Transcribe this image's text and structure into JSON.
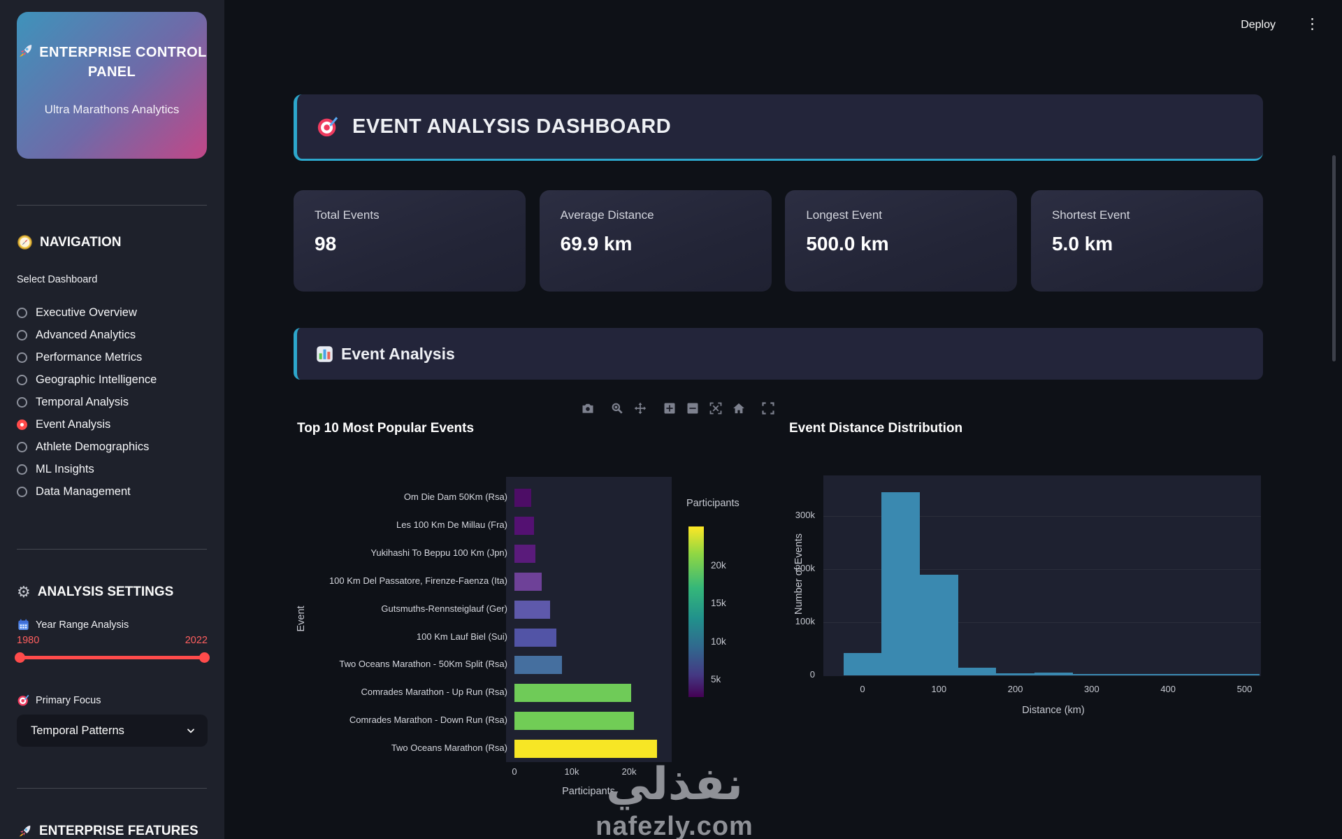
{
  "header": {
    "deploy_label": "Deploy"
  },
  "sidebar": {
    "brand": {
      "icon": "rocket-icon",
      "title_line1": "🚀 ENTERPRISE",
      "title_line2": "CONTROL PANEL",
      "title": "ENTERPRISE CONTROL PANEL",
      "subtitle": "Ultra Marathons Analytics"
    },
    "navigation": {
      "icon": "compass-icon",
      "title": "NAVIGATION",
      "select_label": "Select Dashboard",
      "selected_color": "#ff4b4b",
      "items": [
        {
          "label": "Executive Overview",
          "selected": false
        },
        {
          "label": "Advanced Analytics",
          "selected": false
        },
        {
          "label": "Performance Metrics",
          "selected": false
        },
        {
          "label": "Geographic Intelligence",
          "selected": false
        },
        {
          "label": "Temporal Analysis",
          "selected": false
        },
        {
          "label": "Event Analysis",
          "selected": true
        },
        {
          "label": "Athlete Demographics",
          "selected": false
        },
        {
          "label": "ML Insights",
          "selected": false
        },
        {
          "label": "Data Management",
          "selected": false
        }
      ]
    },
    "settings": {
      "icon": "gear-icon",
      "title": "ANALYSIS SETTINGS",
      "year_range": {
        "icon": "calendar-icon",
        "label": "Year Range Analysis",
        "min": "1980",
        "max": "2022",
        "accent": "#ff4b4b"
      },
      "focus": {
        "icon": "target-icon",
        "label": "Primary Focus",
        "value": "Temporal Patterns"
      }
    },
    "features": {
      "icon": "rocket-icon",
      "title": "ENTERPRISE FEATURES"
    }
  },
  "main": {
    "title": {
      "icon": "target-icon",
      "text": "EVENT ANALYSIS DASHBOARD"
    },
    "metrics": [
      {
        "label": "Total Events",
        "value": "98"
      },
      {
        "label": "Average Distance",
        "value": "69.9 km"
      },
      {
        "label": "Longest Event",
        "value": "500.0 km"
      },
      {
        "label": "Shortest Event",
        "value": "5.0 km"
      }
    ],
    "section": {
      "icon": "bar-chart-icon",
      "title": "Event Analysis"
    },
    "toolbar_icons": [
      "camera-icon",
      "zoom-icon",
      "pan-icon",
      "zoom-in-icon",
      "zoom-out-icon",
      "autoscale-icon",
      "home-icon",
      "fullscreen-icon"
    ],
    "watermark": {
      "arabic": "نفذلي",
      "latin": "nafezly.com"
    },
    "accent_teal": "#2da7cc"
  },
  "chart_data": [
    {
      "type": "bar",
      "orientation": "horizontal",
      "title": "Top 10 Most Popular Events",
      "xlabel": "Participants",
      "ylabel": "Event",
      "categories": [
        "Om Die Dam 50Km (Rsa)",
        "Les 100 Km De Millau (Fra)",
        "Yukihashi To Beppu 100 Km (Jpn)",
        "100 Km Del Passatore, Firenze-Faenza (Ita)",
        "Gutsmuths-Rennsteiglauf (Ger)",
        "100 Km Lauf Biel (Sui)",
        "Two Oceans Marathon - 50Km Split (Rsa)",
        "Comrades Marathon - Up Run (Rsa)",
        "Comrades Marathon - Down Run (Rsa)",
        "Two Oceans Marathon (Rsa)"
      ],
      "values": [
        2900,
        3400,
        3600,
        4800,
        6200,
        7300,
        8300,
        20400,
        20900,
        24900
      ],
      "bar_colors": [
        "#4d0d66",
        "#541172",
        "#5a1b7b",
        "#6e4198",
        "#5e59ab",
        "#5254a6",
        "#456f9f",
        "#6fcb58",
        "#71cd56",
        "#f7e625"
      ],
      "xticks": [
        "0",
        "10k",
        "20k"
      ],
      "xtick_values": [
        0,
        10000,
        20000
      ],
      "xlim": [
        0,
        28500
      ],
      "grid": false,
      "colorbar": {
        "title": "Participants",
        "tick_labels": [
          "20k",
          "15k",
          "10k",
          "5k"
        ],
        "tick_values": [
          20000,
          15000,
          10000,
          5000
        ],
        "vmin": 2800,
        "vmax": 25200,
        "colormap": "viridis"
      }
    },
    {
      "type": "histogram",
      "title": "Event Distance Distribution",
      "xlabel": "Distance (km)",
      "ylabel": "Number of Events",
      "bar_color": "#3a89b0",
      "bins": [
        {
          "x0": -25,
          "x1": 25,
          "count": 42000
        },
        {
          "x0": 25,
          "x1": 75,
          "count": 345000
        },
        {
          "x0": 75,
          "x1": 125,
          "count": 190000
        },
        {
          "x0": 125,
          "x1": 175,
          "count": 15000
        },
        {
          "x0": 175,
          "x1": 225,
          "count": 3500
        },
        {
          "x0": 225,
          "x1": 275,
          "count": 5500
        },
        {
          "x0": 275,
          "x1": 520,
          "count": 1500
        }
      ],
      "xticks": [
        "0",
        "100",
        "200",
        "300",
        "400",
        "500"
      ],
      "xtick_values": [
        0,
        100,
        200,
        300,
        400,
        500
      ],
      "yticks": [
        "0",
        "100k",
        "200k",
        "300k"
      ],
      "ytick_values": [
        0,
        100000,
        200000,
        300000
      ],
      "xlim": [
        -50,
        523
      ],
      "ylim": [
        0,
        376000
      ],
      "grid": true
    }
  ]
}
